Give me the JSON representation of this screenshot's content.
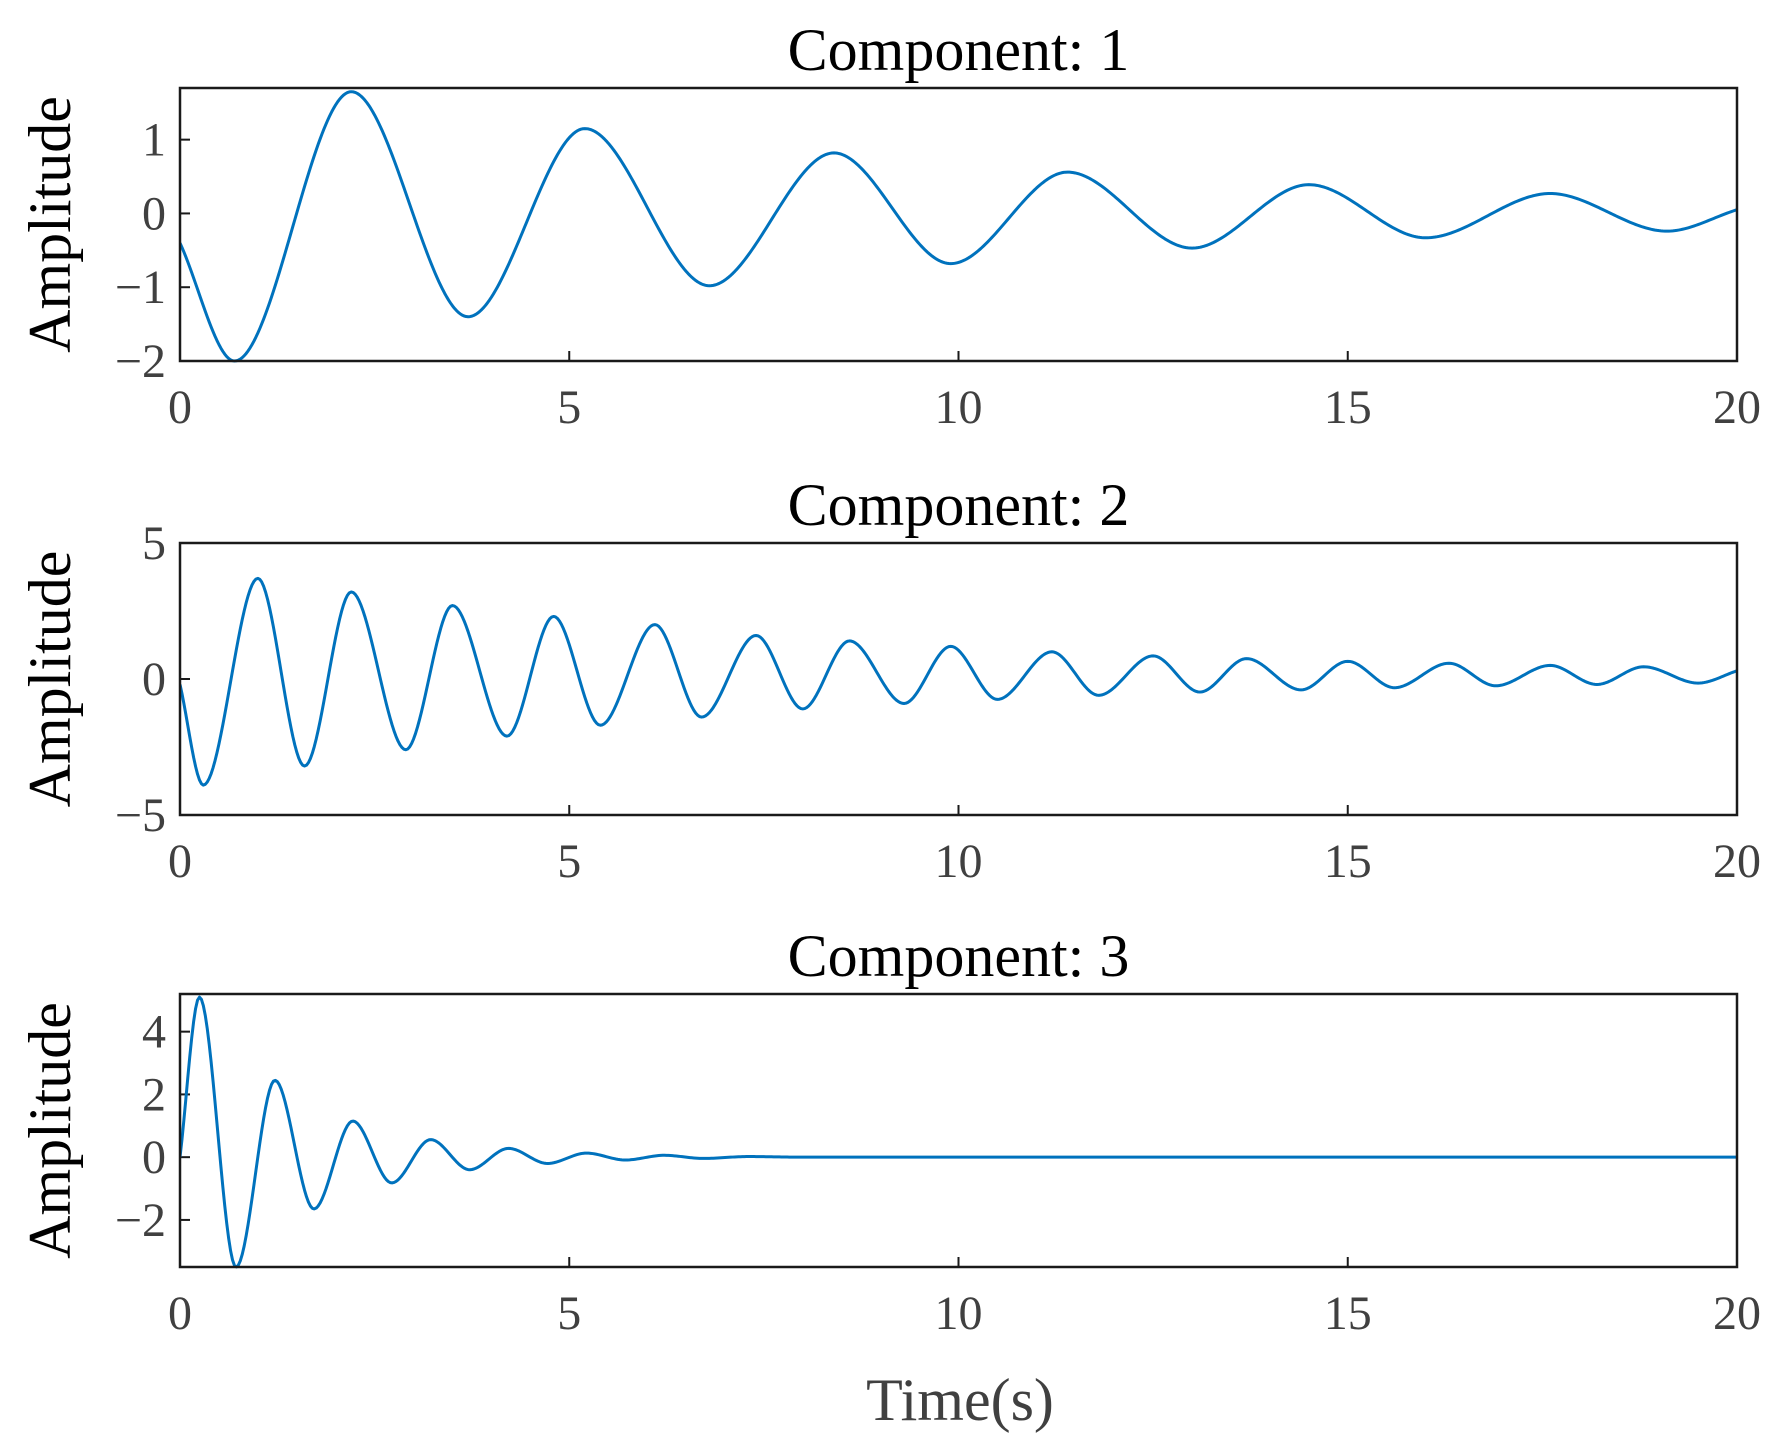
{
  "figure": {
    "xlabel": "Time(s)",
    "line_color": "#0072bd"
  },
  "chart_data": [
    {
      "type": "line",
      "title": "Component: 1",
      "ylabel": "Amplitude",
      "xlabel": "",
      "xlim": [
        0,
        20
      ],
      "ylim": [
        -2,
        1.7
      ],
      "xticks": [
        0,
        5,
        10,
        15,
        20
      ],
      "yticks": [
        -2,
        -1,
        0,
        1
      ],
      "grid": false,
      "series": [
        {
          "x": [
            0.0,
            0.7,
            2.2,
            3.7,
            5.2,
            6.8,
            8.4,
            9.9,
            11.4,
            13.0,
            14.5,
            16.0,
            17.6,
            19.1,
            20.0
          ],
          "y": [
            -0.4,
            -2.0,
            1.65,
            -1.4,
            1.15,
            -0.98,
            0.82,
            -0.68,
            0.56,
            -0.47,
            0.39,
            -0.33,
            0.27,
            -0.24,
            0.05
          ]
        }
      ]
    },
    {
      "type": "line",
      "title": "Component: 2",
      "ylabel": "Amplitude",
      "xlabel": "",
      "xlim": [
        0,
        20
      ],
      "ylim": [
        -5,
        5
      ],
      "xticks": [
        0,
        5,
        10,
        15,
        20
      ],
      "yticks": [
        -5,
        0,
        5
      ],
      "grid": false,
      "series": [
        {
          "x": [
            0.0,
            0.3,
            1.0,
            1.6,
            2.2,
            2.9,
            3.5,
            4.2,
            4.8,
            5.4,
            6.1,
            6.7,
            7.4,
            8.0,
            8.6,
            9.3,
            9.9,
            10.5,
            11.2,
            11.8,
            12.5,
            13.1,
            13.7,
            14.4,
            15.0,
            15.6,
            16.3,
            16.9,
            17.6,
            18.2,
            18.8,
            19.5,
            20.0
          ],
          "y": [
            -0.2,
            -3.9,
            3.7,
            -3.2,
            3.2,
            -2.6,
            2.7,
            -2.1,
            2.3,
            -1.7,
            2.0,
            -1.4,
            1.6,
            -1.1,
            1.4,
            -0.9,
            1.2,
            -0.75,
            1.0,
            -0.6,
            0.85,
            -0.48,
            0.75,
            -0.4,
            0.65,
            -0.32,
            0.58,
            -0.25,
            0.5,
            -0.2,
            0.45,
            -0.15,
            0.3
          ]
        }
      ]
    },
    {
      "type": "line",
      "title": "Component: 3",
      "ylabel": "Amplitude",
      "xlabel": "",
      "xlim": [
        0,
        20
      ],
      "ylim": [
        -3.5,
        5.2
      ],
      "xticks": [
        0,
        5,
        10,
        15,
        20
      ],
      "yticks": [
        -2,
        0,
        2,
        4
      ],
      "grid": false,
      "series": [
        {
          "x": [
            0.0,
            0.25,
            0.72,
            1.22,
            1.72,
            2.22,
            2.72,
            3.22,
            3.72,
            4.22,
            4.72,
            5.22,
            5.72,
            6.22,
            6.72,
            7.3,
            8.0,
            9.0,
            20.0
          ],
          "y": [
            0.0,
            5.1,
            -3.5,
            2.45,
            -1.65,
            1.15,
            -0.82,
            0.56,
            -0.4,
            0.28,
            -0.2,
            0.13,
            -0.09,
            0.06,
            -0.04,
            0.02,
            0.0,
            0.0,
            0.0
          ]
        }
      ]
    }
  ]
}
